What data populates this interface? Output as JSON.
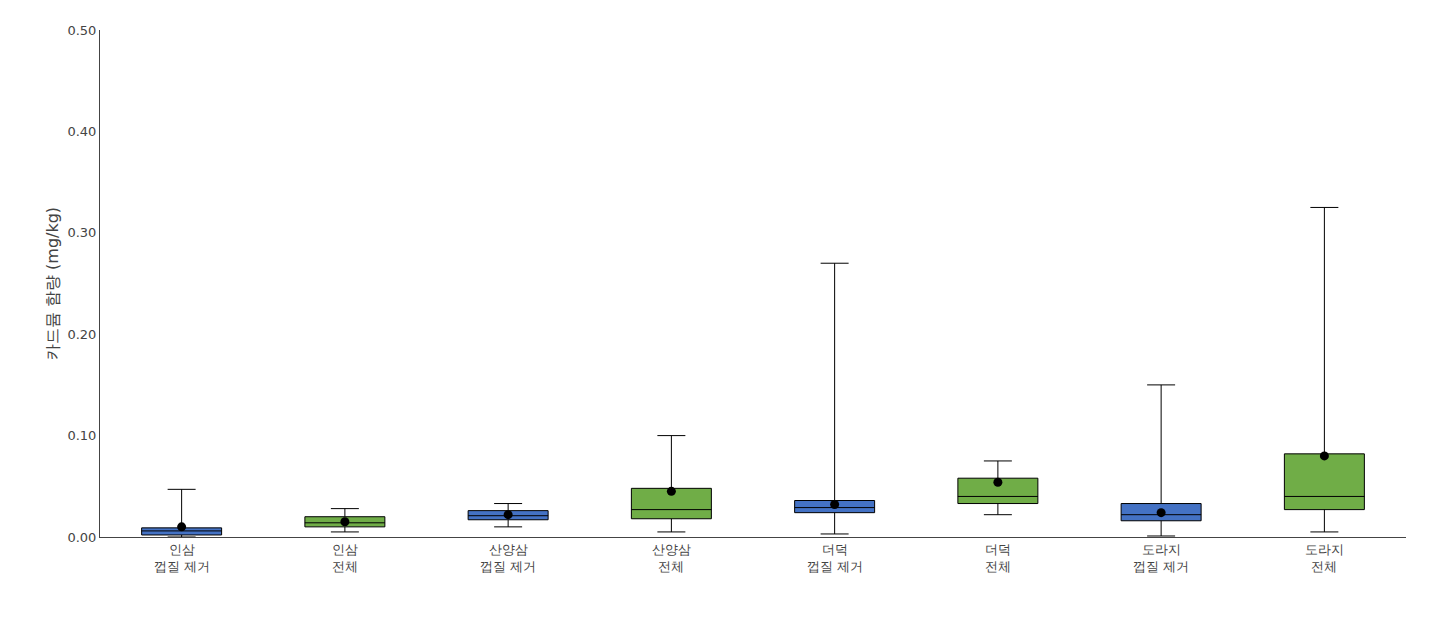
{
  "chart_data": {
    "type": "box",
    "categories": [
      "인삼\n껍질 제거",
      "인삼\n전체",
      "산양삼\n껍질 제거",
      "산양삼\n전체",
      "더덕\n껍질 제거",
      "더덕\n전체",
      "도라지\n껍질 제거",
      "도라지\n전체"
    ],
    "whisker_low": [
      0.0,
      0.005,
      0.01,
      0.005,
      0.003,
      0.022,
      0.001,
      0.005
    ],
    "q1": [
      0.002,
      0.01,
      0.017,
      0.018,
      0.024,
      0.033,
      0.016,
      0.027
    ],
    "median": [
      0.006,
      0.014,
      0.021,
      0.027,
      0.029,
      0.04,
      0.022,
      0.04
    ],
    "q3": [
      0.009,
      0.02,
      0.026,
      0.048,
      0.036,
      0.058,
      0.033,
      0.082
    ],
    "whisker_high": [
      0.047,
      0.028,
      0.033,
      0.1,
      0.27,
      0.075,
      0.15,
      0.325
    ],
    "mean": [
      0.01,
      0.015,
      0.022,
      0.045,
      0.032,
      0.054,
      0.024,
      0.08
    ],
    "colors": [
      "#4472c4",
      "#70ad47",
      "#4472c4",
      "#70ad47",
      "#4472c4",
      "#70ad47",
      "#4472c4",
      "#70ad47"
    ],
    "marker": "circle",
    "ylabel": "카드뮴 함량 (mg/kg)",
    "ylim": [
      0.0,
      0.5
    ],
    "yticks": [
      {
        "value": 0.0,
        "label": "0.00"
      },
      {
        "value": 0.1,
        "label": "0.10"
      },
      {
        "value": 0.2,
        "label": "0.20"
      },
      {
        "value": 0.3,
        "label": "0.30"
      },
      {
        "value": 0.4,
        "label": "0.40"
      },
      {
        "value": 0.5,
        "label": "0.50"
      }
    ],
    "grid": false
  }
}
